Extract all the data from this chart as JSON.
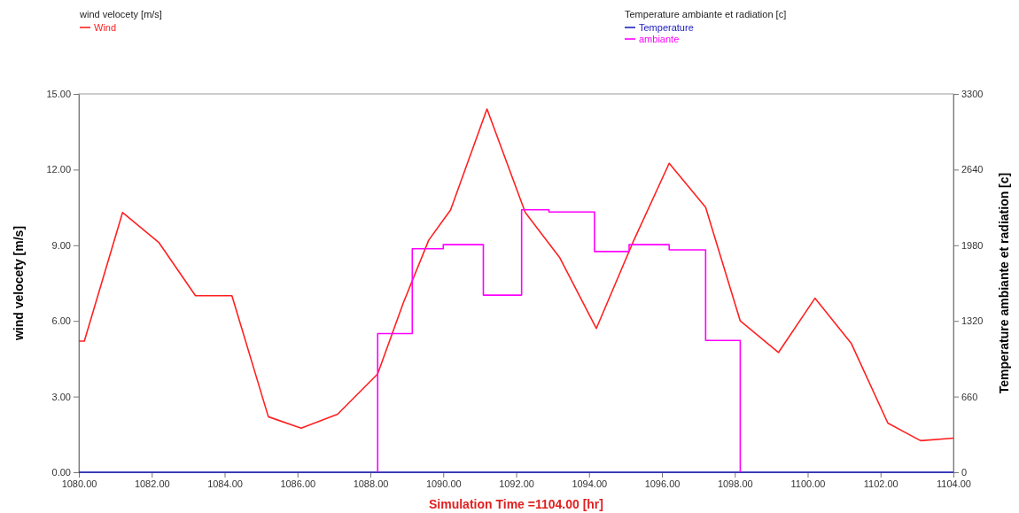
{
  "chart_data": {
    "type": "line",
    "xlabel": "Simulation Time =1104.00 [hr]",
    "ylabel": "wind velocety [m/s]",
    "y2label": "Temperature ambiante et radiation [c]",
    "annotations": [
      "wind velocety [m/s]",
      "Temperature ambiante et radiation [c]"
    ],
    "legend": "top",
    "grid": false,
    "marker": "none",
    "line_style": "solid",
    "xlim": [
      1080,
      1104
    ],
    "xticks": [
      {
        "value": 1080,
        "label": "1080.00"
      },
      {
        "value": 1082,
        "label": "1082.00"
      },
      {
        "value": 1084,
        "label": "1084.00"
      },
      {
        "value": 1086,
        "label": "1086.00"
      },
      {
        "value": 1088,
        "label": "1088.00"
      },
      {
        "value": 1090,
        "label": "1090.00"
      },
      {
        "value": 1092,
        "label": "1092.00"
      },
      {
        "value": 1094,
        "label": "1094.00"
      },
      {
        "value": 1096,
        "label": "1096.00"
      },
      {
        "value": 1098,
        "label": "1098.00"
      },
      {
        "value": 1100,
        "label": "1100.00"
      },
      {
        "value": 1102,
        "label": "1102.00"
      },
      {
        "value": 1104,
        "label": "1104.00"
      }
    ],
    "ylim": [
      0,
      15
    ],
    "yticks": [
      {
        "value": 0,
        "label": "0.00"
      },
      {
        "value": 3,
        "label": "3.00"
      },
      {
        "value": 6,
        "label": "6.00"
      },
      {
        "value": 9,
        "label": "9.00"
      },
      {
        "value": 12,
        "label": "12.00"
      },
      {
        "value": 15,
        "label": "15.00"
      }
    ],
    "y2lim": [
      0,
      3300
    ],
    "y2ticks": [
      0,
      660,
      1320,
      1980,
      2640,
      3300
    ],
    "series": [
      {
        "name": "Wind",
        "color": "#ff2020",
        "x": [
          1080,
          1080.15,
          1081.2,
          1082.2,
          1083.2,
          1084.2,
          1085.2,
          1086.1,
          1087.1,
          1088.2,
          1088.9,
          1089.6,
          1090.2,
          1091.2,
          1092.25,
          1093.2,
          1094.2,
          1095.2,
          1096.2,
          1097.2,
          1098.15,
          1099.2,
          1100.2,
          1101.2,
          1102.2,
          1103.1,
          1104
        ],
        "values": [
          5.2,
          5.2,
          10.3,
          9.1,
          7.0,
          7.0,
          2.2,
          1.75,
          2.3,
          3.9,
          6.7,
          9.2,
          10.4,
          14.4,
          10.3,
          8.5,
          5.7,
          9.1,
          12.25,
          10.5,
          6.0,
          4.75,
          6.9,
          5.1,
          1.95,
          1.25,
          1.35
        ]
      },
      {
        "name": "Temperature",
        "color": "#2020c0",
        "axis": "y2",
        "x": [
          1080,
          1104
        ],
        "values": [
          0,
          0
        ]
      },
      {
        "name": "ambiante",
        "color": "#ff00ff",
        "type": "step",
        "axis": "y2",
        "x": [
          1088.2,
          1088.2,
          1089.15,
          1090.0,
          1091.1,
          1092.15,
          1092.9,
          1094.15,
          1095.1,
          1096.2,
          1097.2,
          1098.15
        ],
        "values": [
          0,
          1210,
          1950,
          1985,
          1545,
          2290,
          2270,
          1925,
          1985,
          1940,
          1150,
          0
        ]
      }
    ]
  }
}
